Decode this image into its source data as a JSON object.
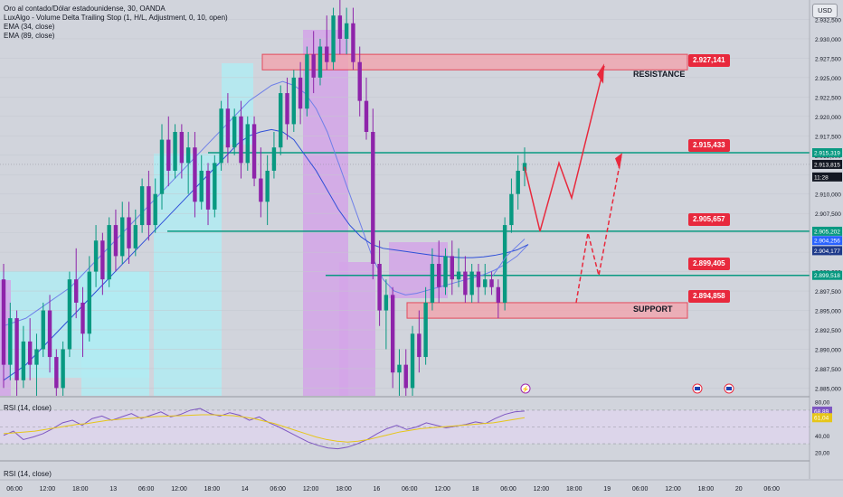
{
  "header": {
    "symbol": "Oro al contado/Dólar estadounidense, 30, OANDA",
    "indicators": [
      "LuxAlgo - Volume Delta Trailing Stop (1, H/L, Adjustment, 0, 10, open)",
      "EMA (34, close)",
      "EMA (89, close)"
    ],
    "currency": "USD"
  },
  "price_axis": {
    "ticks": [
      "2.932,500",
      "2.930,000",
      "2.927,500",
      "2.925,000",
      "2.922,500",
      "2.920,000",
      "2.917,500",
      "2.915,000",
      "2.912,500",
      "2.910,000",
      "2.907,500",
      "2.905,000",
      "2.902,500",
      "2.900,000",
      "2.897,500",
      "2.895,000",
      "2.892,500",
      "2.890,000",
      "2.887,500",
      "2.885,000"
    ],
    "tick_values": [
      2932.5,
      2930,
      2927.5,
      2925,
      2922.5,
      2920,
      2917.5,
      2915,
      2912.5,
      2910,
      2907.5,
      2905,
      2902.5,
      2900,
      2897.5,
      2895,
      2892.5,
      2890,
      2887.5,
      2885
    ],
    "tags": [
      {
        "text": "2.915,319",
        "value": 2915.319,
        "color": "#089981"
      },
      {
        "text": "2.913,815",
        "value": 2913.815,
        "color": "#131722"
      },
      {
        "text": "11:28",
        "value": 2912.2,
        "color": "#131722"
      },
      {
        "text": "2.905,202",
        "value": 2905.202,
        "color": "#089981"
      },
      {
        "text": "2.904,256",
        "value": 2904.0,
        "color": "#2962ff"
      },
      {
        "text": "2.904,177",
        "value": 2902.7,
        "color": "#1e3a8a"
      },
      {
        "text": "2.899,518",
        "value": 2899.518,
        "color": "#089981"
      }
    ]
  },
  "rsi_axis": {
    "ticks": [
      "80,00",
      "60,00",
      "40,00",
      "20,00"
    ],
    "tick_values": [
      80,
      60,
      40,
      20
    ],
    "tags": [
      {
        "text": "68,89",
        "value": 68.89,
        "color": "#7e57c2"
      },
      {
        "text": "61,04",
        "value": 61.04,
        "color": "#e6c619"
      }
    ]
  },
  "time_axis": [
    "06:00",
    "12:00",
    "18:00",
    "13",
    "06:00",
    "12:00",
    "18:00",
    "14",
    "06:00",
    "12:00",
    "18:00",
    "16",
    "06:00",
    "12:00",
    "18",
    "06:00",
    "12:00",
    "18:00",
    "19",
    "06:00",
    "12:00",
    "18:00",
    "20",
    "06:00"
  ],
  "annotations": {
    "resistance_label": "RESISTANCE",
    "support_label": "SUPPORT",
    "level_tags": [
      {
        "text": "2.927,141",
        "value": 2927.141
      },
      {
        "text": "2.915,433",
        "value": 2915.433
      },
      {
        "text": "2.905,657",
        "value": 2905.657
      },
      {
        "text": "2.899,405",
        "value": 2899.405
      },
      {
        "text": "2.894,858",
        "value": 2894.858
      }
    ],
    "resistance_zone": [
      2926.0,
      2928.0
    ],
    "support_zone": [
      2894.0,
      2896.0
    ],
    "horizontal_lines": [
      2915.319,
      2905.202,
      2899.518
    ]
  },
  "rsi": {
    "label": "RSI (14, close)",
    "label_bottom": "RSI (14, close)",
    "band": [
      70,
      30
    ]
  },
  "colors": {
    "bull": "#089981",
    "bear": "#e8293d",
    "zone_red": "#f2a5ae",
    "line_green": "#089981",
    "teal_fill": "#b2ebf2",
    "purple_fill": "#d3a4e8",
    "ema_fast": "#6f80e8",
    "ema_slow": "#2f4fd8",
    "rsi": "#7e57c2",
    "rsi_ma": "#e6c619"
  },
  "chart_data": {
    "type": "candlestick",
    "title": "Oro al contado/Dólar estadounidense, 30, OANDA",
    "ylim": [
      2884,
      2935
    ],
    "rsi_ylim": [
      15,
      85
    ],
    "candles": [
      [
        2899,
        2901,
        2885,
        2888
      ],
      [
        2888,
        2896,
        2886,
        2894
      ],
      [
        2894,
        2895,
        2884,
        2886
      ],
      [
        2886,
        2893,
        2885,
        2891
      ],
      [
        2891,
        2894,
        2886,
        2888
      ],
      [
        2888,
        2892,
        2884,
        2890
      ],
      [
        2890,
        2896,
        2889,
        2895
      ],
      [
        2895,
        2897,
        2887,
        2889
      ],
      [
        2889,
        2890,
        2884,
        2885
      ],
      [
        2885,
        2891,
        2884,
        2890
      ],
      [
        2890,
        2900,
        2889,
        2899
      ],
      [
        2899,
        2903,
        2894,
        2896
      ],
      [
        2896,
        2898,
        2889,
        2892
      ],
      [
        2892,
        2902,
        2891,
        2900
      ],
      [
        2900,
        2906,
        2898,
        2904
      ],
      [
        2904,
        2905,
        2897,
        2899
      ],
      [
        2899,
        2907,
        2898,
        2906
      ],
      [
        2906,
        2908,
        2900,
        2902
      ],
      [
        2902,
        2909,
        2901,
        2907
      ],
      [
        2907,
        2909,
        2901,
        2903
      ],
      [
        2903,
        2908,
        2902,
        2906
      ],
      [
        2906,
        2912,
        2905,
        2911
      ],
      [
        2911,
        2913,
        2904,
        2906
      ],
      [
        2906,
        2912,
        2905,
        2910
      ],
      [
        2910,
        2919,
        2908,
        2917
      ],
      [
        2917,
        2920,
        2911,
        2913
      ],
      [
        2913,
        2919,
        2912,
        2918
      ],
      [
        2918,
        2919,
        2912,
        2914
      ],
      [
        2914,
        2918,
        2910,
        2916
      ],
      [
        2916,
        2918,
        2907,
        2909
      ],
      [
        2909,
        2915,
        2908,
        2913
      ],
      [
        2913,
        2914,
        2906,
        2908
      ],
      [
        2908,
        2915,
        2907,
        2914
      ],
      [
        2914,
        2922,
        2913,
        2921
      ],
      [
        2921,
        2923,
        2914,
        2916
      ],
      [
        2916,
        2921,
        2915,
        2920
      ],
      [
        2920,
        2922,
        2912,
        2914
      ],
      [
        2914,
        2920,
        2913,
        2919
      ],
      [
        2919,
        2920,
        2911,
        2912
      ],
      [
        2912,
        2916,
        2907,
        2909
      ],
      [
        2909,
        2915,
        2906,
        2913
      ],
      [
        2913,
        2918,
        2912,
        2916
      ],
      [
        2916,
        2924,
        2915,
        2923
      ],
      [
        2923,
        2925,
        2917,
        2919
      ],
      [
        2919,
        2926,
        2918,
        2925
      ],
      [
        2925,
        2927,
        2919,
        2921
      ],
      [
        2921,
        2929,
        2920,
        2928
      ],
      [
        2928,
        2931,
        2923,
        2925
      ],
      [
        2925,
        2930,
        2924,
        2929
      ],
      [
        2929,
        2933,
        2926,
        2927
      ],
      [
        2927,
        2934,
        2926,
        2933
      ],
      [
        2933,
        2935,
        2928,
        2930
      ],
      [
        2930,
        2934,
        2928,
        2932
      ],
      [
        2932,
        2934,
        2926,
        2927
      ],
      [
        2927,
        2929,
        2920,
        2922
      ],
      [
        2922,
        2925,
        2917,
        2918
      ],
      [
        2918,
        2921,
        2899,
        2901
      ],
      [
        2901,
        2904,
        2893,
        2895
      ],
      [
        2895,
        2899,
        2890,
        2897
      ],
      [
        2897,
        2898,
        2885,
        2887
      ],
      [
        2887,
        2890,
        2884,
        2888
      ],
      [
        2888,
        2890,
        2884,
        2885
      ],
      [
        2885,
        2893,
        2884,
        2892
      ],
      [
        2892,
        2895,
        2887,
        2889
      ],
      [
        2889,
        2898,
        2888,
        2896
      ],
      [
        2896,
        2903,
        2895,
        2901
      ],
      [
        2901,
        2904,
        2896,
        2898
      ],
      [
        2898,
        2903,
        2897,
        2902
      ],
      [
        2902,
        2904,
        2897,
        2899
      ],
      [
        2899,
        2903,
        2898,
        2900
      ],
      [
        2900,
        2902,
        2896,
        2897
      ],
      [
        2897,
        2901,
        2896,
        2900
      ],
      [
        2900,
        2901,
        2896,
        2898
      ],
      [
        2898,
        2901,
        2897,
        2899
      ],
      [
        2899,
        2900,
        2897,
        2898
      ],
      [
        2898,
        2899,
        2894,
        2896
      ],
      [
        2896,
        2907,
        2895,
        2906
      ],
      [
        2906,
        2912,
        2905,
        2910
      ],
      [
        2910,
        2915,
        2908,
        2913
      ],
      [
        2913,
        2916,
        2911,
        2914
      ]
    ],
    "ema34": [
      2893,
      2893.5,
      2894,
      2895,
      2896,
      2897,
      2898,
      2899.5,
      2901,
      2902.5,
      2904,
      2905.5,
      2907,
      2908.5,
      2910,
      2911.5,
      2913,
      2914.5,
      2916,
      2917.5,
      2919,
      2920.5,
      2922,
      2923,
      2924,
      2924.5,
      2924,
      2923,
      2921,
      2918,
      2914,
      2910,
      2906,
      2902,
      2899,
      2897.5,
      2897,
      2897.2,
      2897.6,
      2898,
      2898.4,
      2898.8,
      2899.2,
      2899.6,
      2900.2,
      2901,
      2902,
      2903.5
    ],
    "ema89": [
      2886,
      2887,
      2888,
      2889.5,
      2891,
      2892.5,
      2894,
      2895.5,
      2897,
      2898.5,
      2900,
      2901.5,
      2903,
      2904.5,
      2906,
      2907.5,
      2909,
      2910.5,
      2912,
      2913.5,
      2915,
      2916.5,
      2917.5,
      2918,
      2918.3,
      2918,
      2917,
      2915,
      2913,
      2910.5,
      2908,
      2906,
      2904.5,
      2903.5,
      2903,
      2902.8,
      2902.6,
      2902.4,
      2902.2,
      2902,
      2901.9,
      2901.8,
      2901.8,
      2901.9,
      2902.1,
      2902.4,
      2902.8,
      2903.5
    ],
    "rsi_values": [
      40,
      45,
      35,
      38,
      42,
      48,
      55,
      58,
      52,
      60,
      63,
      58,
      62,
      66,
      60,
      64,
      68,
      62,
      65,
      70,
      72,
      66,
      63,
      67,
      64,
      58,
      62,
      55,
      50,
      44,
      38,
      32,
      28,
      25,
      24,
      26,
      30,
      35,
      42,
      48,
      52,
      47,
      50,
      55,
      52,
      49,
      51,
      53,
      56,
      54,
      60,
      65,
      68,
      69
    ],
    "rsi_ma": [
      42,
      43,
      44,
      45,
      47,
      49,
      51,
      53,
      54,
      56,
      58,
      59,
      60,
      61,
      62,
      62.5,
      63,
      63.5,
      64,
      64.5,
      64.5,
      64,
      63.5,
      62,
      60,
      57,
      54,
      50,
      46,
      42,
      38,
      35,
      33,
      32,
      33,
      35,
      38,
      41,
      44,
      46,
      48,
      49,
      50,
      51,
      52,
      53,
      54,
      55,
      57,
      59,
      61
    ]
  }
}
